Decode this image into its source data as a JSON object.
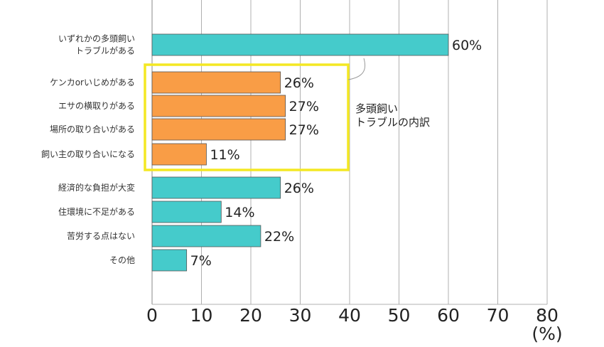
{
  "chart_data": {
    "type": "bar",
    "orientation": "horizontal",
    "categories": [
      "いずれかの多頭飼い\nトラブルがある",
      "ケンカorいじめがある",
      "エサの横取りがある",
      "場所の取り合いがある",
      "飼い主の取り合いになる",
      "経済的な負担が大変",
      "住環境に不足がある",
      "苦労する点はない",
      "その他"
    ],
    "values": [
      60,
      26,
      27,
      27,
      11,
      26,
      14,
      22,
      7
    ],
    "value_labels": [
      "60%",
      "26%",
      "27%",
      "27%",
      "11%",
      "26%",
      "14%",
      "22%",
      "7%"
    ],
    "bar_groups": [
      "main",
      "sub",
      "sub",
      "sub",
      "sub",
      "main",
      "main",
      "main",
      "main"
    ],
    "colors": {
      "main": "#45cbcb",
      "sub": "#f99d46",
      "highlight_box": "#f4e823",
      "grid": "#b0b0b0"
    },
    "xlim": [
      0,
      80
    ],
    "xticks": [
      "0",
      "10",
      "20",
      "30",
      "40",
      "50",
      "60",
      "70",
      "80"
    ],
    "x_unit": "(%)",
    "annotation": "多頭飼い\nトラブルの内訳",
    "grid": true,
    "title": "",
    "xlabel": "",
    "ylabel": ""
  }
}
